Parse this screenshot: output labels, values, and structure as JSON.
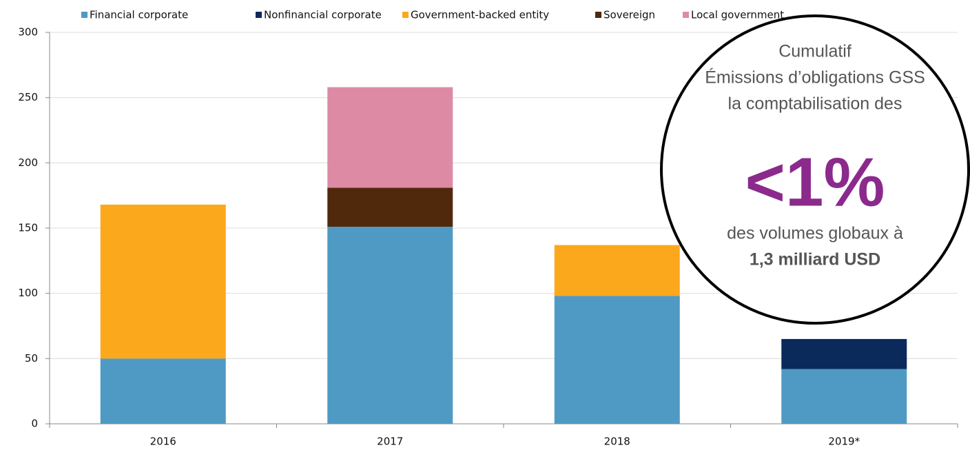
{
  "chart_data": {
    "type": "stacked_bar",
    "categories": [
      "2016",
      "2017",
      "2018",
      "2019*"
    ],
    "series": [
      {
        "name": "Financial corporate",
        "color": "#4f9ac4",
        "values": [
          50,
          151,
          98,
          42
        ]
      },
      {
        "name": "Nonfinancial corporate",
        "color": "#0a2a5c",
        "values": [
          0,
          0,
          0,
          23
        ]
      },
      {
        "name": "Government-backed entity",
        "color": "#fca81c",
        "values": [
          118,
          0,
          39,
          0
        ]
      },
      {
        "name": "Sovereign",
        "color": "#50290c",
        "values": [
          0,
          30,
          0,
          0
        ]
      },
      {
        "name": "Local government",
        "color": "#dd8ba5",
        "values": [
          0,
          77,
          0,
          0
        ]
      }
    ],
    "ylim": [
      0,
      300
    ],
    "yticks": [
      0,
      50,
      100,
      150,
      200,
      250,
      300
    ],
    "grid": true,
    "legend": "top",
    "annotation": {
      "lines": [
        "Cumulatif",
        "Émissions d’obligations GSS",
        "la comptabilisation des"
      ],
      "highlight": "<1%",
      "lines_after": [
        "des volumes globaux à",
        "1,3 milliard USD"
      ]
    }
  }
}
